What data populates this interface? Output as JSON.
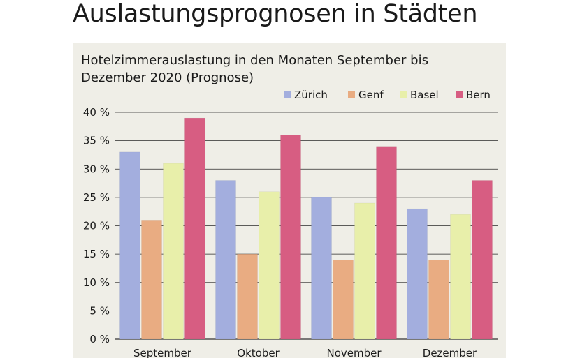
{
  "page": {
    "title": "Auslastungsprognosen in Städten"
  },
  "chart_data": {
    "type": "bar",
    "title": "Hotelzimmerauslastung in den Monaten September bis Dezember 2020 (Prognose)",
    "xlabel": "",
    "ylabel": "",
    "categories": [
      "September",
      "Oktober",
      "November",
      "Dezember"
    ],
    "series": [
      {
        "name": "Zürich",
        "color": "#a3aede",
        "values": [
          33,
          28,
          25,
          23
        ]
      },
      {
        "name": "Genf",
        "color": "#e9ac82",
        "values": [
          21,
          15,
          14,
          14
        ]
      },
      {
        "name": "Basel",
        "color": "#e8efaa",
        "values": [
          31,
          26,
          24,
          22
        ]
      },
      {
        "name": "Bern",
        "color": "#d75d82",
        "values": [
          39,
          36,
          34,
          28
        ]
      }
    ],
    "ylim": [
      0,
      40
    ],
    "yticks": [
      0,
      5,
      10,
      15,
      20,
      25,
      30,
      35,
      40
    ],
    "ytick_labels": [
      "0 %",
      "5 %",
      "10 %",
      "15 %",
      "20 %",
      "25 %",
      "30 %",
      "35 %",
      "40 %"
    ],
    "grid": true,
    "legend": "top-right",
    "background": "#efeee7"
  }
}
